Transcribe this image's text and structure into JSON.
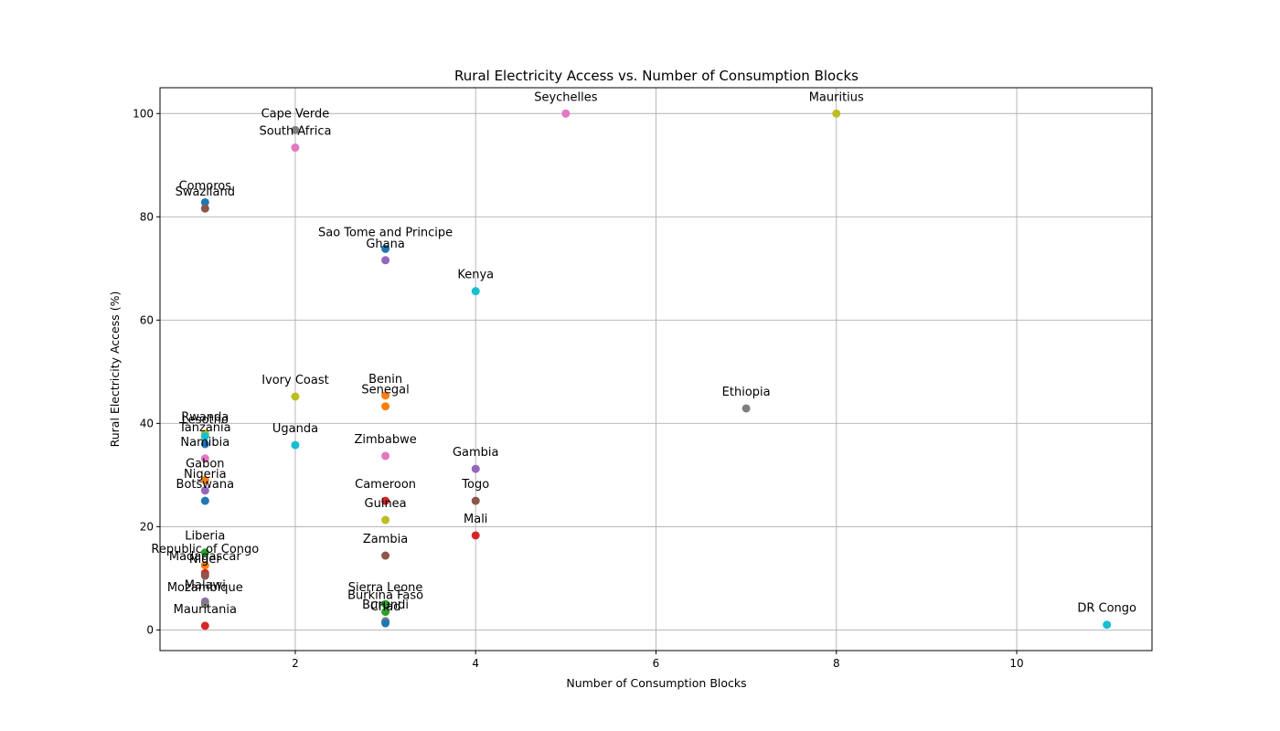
{
  "chart_data": {
    "type": "scatter",
    "title": "Rural Electricity Access vs. Number of Consumption Blocks",
    "xlabel": "Number of Consumption Blocks",
    "ylabel": "Rural Electricity Access (%)",
    "xlim": [
      0.5,
      11.5
    ],
    "ylim": [
      -4,
      105
    ],
    "xticks": [
      2,
      4,
      6,
      8,
      10
    ],
    "yticks": [
      0,
      20,
      40,
      60,
      80,
      100
    ],
    "grid": true,
    "legend": "none",
    "points": [
      {
        "label": "Comoros",
        "x": 1,
        "y": 82.8,
        "color": "#1f77b4"
      },
      {
        "label": "Swaziland",
        "x": 1,
        "y": 81.6,
        "color": "#8c564b"
      },
      {
        "label": "Rwanda",
        "x": 1,
        "y": 38.0,
        "color": "#bcbd22"
      },
      {
        "label": "Lesotho",
        "x": 1,
        "y": 37.5,
        "color": "#17becf"
      },
      {
        "label": "Tanzania",
        "x": 1,
        "y": 36.0,
        "color": "#1f77b4"
      },
      {
        "label": "Namibia",
        "x": 1,
        "y": 33.2,
        "color": "#e377c2"
      },
      {
        "label": "Gabon",
        "x": 1,
        "y": 29.0,
        "color": "#ff7f0e"
      },
      {
        "label": "Nigeria",
        "x": 1,
        "y": 27.0,
        "color": "#9467bd"
      },
      {
        "label": "Botswana",
        "x": 1,
        "y": 25.0,
        "color": "#1f77b4"
      },
      {
        "label": "Liberia",
        "x": 1,
        "y": 15.0,
        "color": "#2ca02c"
      },
      {
        "label": "Republic of Congo",
        "x": 1,
        "y": 12.5,
        "color": "#ff7f0e"
      },
      {
        "label": "Madagascar",
        "x": 1,
        "y": 11.0,
        "color": "#d62728"
      },
      {
        "label": "Niger",
        "x": 1,
        "y": 10.5,
        "color": "#8c564b"
      },
      {
        "label": "Malawi",
        "x": 1,
        "y": 5.5,
        "color": "#9467bd"
      },
      {
        "label": "Mozambique",
        "x": 1,
        "y": 5.0,
        "color": "#7f7f7f"
      },
      {
        "label": "Mauritania",
        "x": 1,
        "y": 0.8,
        "color": "#d62728"
      },
      {
        "label": "Cape Verde",
        "x": 2,
        "y": 96.8,
        "color": "#7f7f7f"
      },
      {
        "label": "South Africa",
        "x": 2,
        "y": 93.4,
        "color": "#e377c2"
      },
      {
        "label": "Ivory Coast",
        "x": 2,
        "y": 45.2,
        "color": "#bcbd22"
      },
      {
        "label": "Uganda",
        "x": 2,
        "y": 35.8,
        "color": "#17becf"
      },
      {
        "label": "Sao Tome and Principe",
        "x": 3,
        "y": 73.8,
        "color": "#1f77b4"
      },
      {
        "label": "Ghana",
        "x": 3,
        "y": 71.6,
        "color": "#9467bd"
      },
      {
        "label": "Benin",
        "x": 3,
        "y": 45.4,
        "color": "#ff7f0e"
      },
      {
        "label": "Senegal",
        "x": 3,
        "y": 43.3,
        "color": "#ff7f0e"
      },
      {
        "label": "Zimbabwe",
        "x": 3,
        "y": 33.7,
        "color": "#e377c2"
      },
      {
        "label": "Cameroon",
        "x": 3,
        "y": 25.0,
        "color": "#d62728"
      },
      {
        "label": "Guinea",
        "x": 3,
        "y": 21.3,
        "color": "#bcbd22"
      },
      {
        "label": "Zambia",
        "x": 3,
        "y": 14.4,
        "color": "#8c564b"
      },
      {
        "label": "Sierra Leone",
        "x": 3,
        "y": 5.0,
        "color": "#2ca02c"
      },
      {
        "label": "Burkina Faso",
        "x": 3,
        "y": 3.5,
        "color": "#2ca02c"
      },
      {
        "label": "Burundi",
        "x": 3,
        "y": 1.7,
        "color": "#7f7f7f"
      },
      {
        "label": "Chad",
        "x": 3,
        "y": 1.3,
        "color": "#1f77b4"
      },
      {
        "label": "Kenya",
        "x": 4,
        "y": 65.6,
        "color": "#17becf"
      },
      {
        "label": "Gambia",
        "x": 4,
        "y": 31.2,
        "color": "#9467bd"
      },
      {
        "label": "Togo",
        "x": 4,
        "y": 25.0,
        "color": "#8c564b"
      },
      {
        "label": "Mali",
        "x": 4,
        "y": 18.3,
        "color": "#d62728"
      },
      {
        "label": "Seychelles",
        "x": 5,
        "y": 100.0,
        "color": "#e377c2"
      },
      {
        "label": "Ethiopia",
        "x": 7,
        "y": 42.9,
        "color": "#7f7f7f"
      },
      {
        "label": "Mauritius",
        "x": 8,
        "y": 100.0,
        "color": "#bcbd22"
      },
      {
        "label": "DR Congo",
        "x": 11,
        "y": 1.0,
        "color": "#17becf"
      }
    ]
  }
}
